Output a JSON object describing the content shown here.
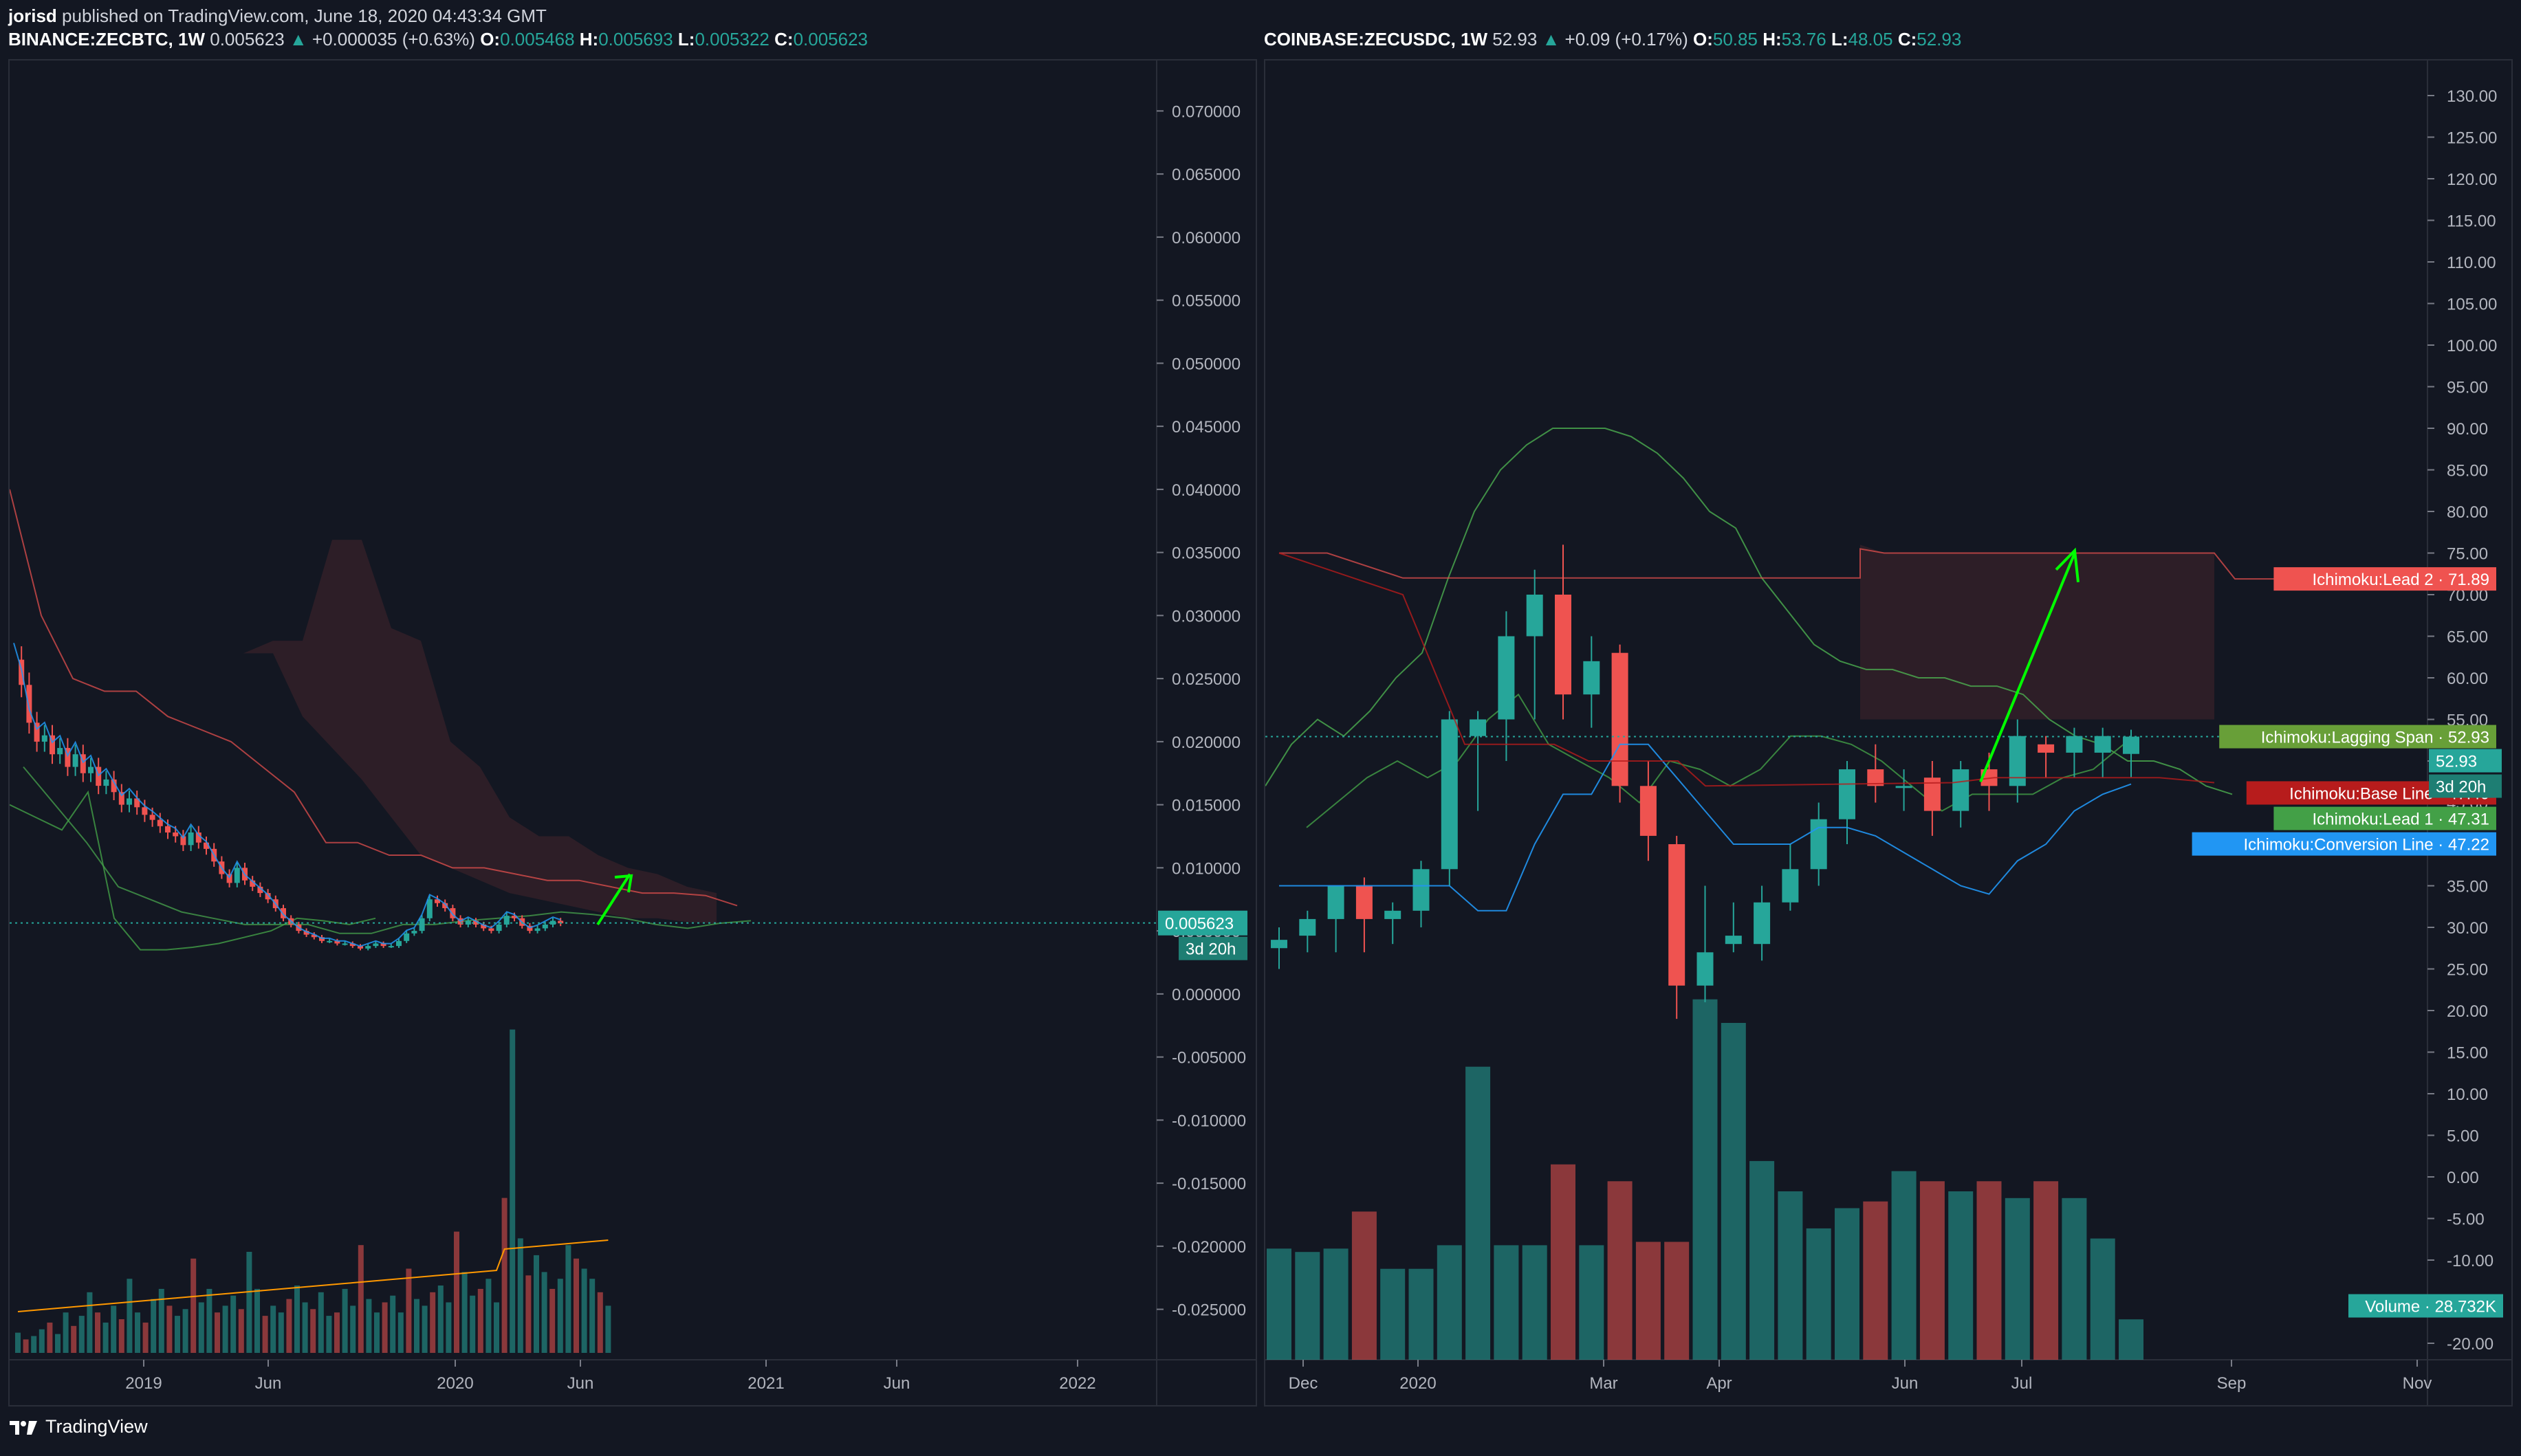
{
  "publisher": {
    "user": "jorisd",
    "text": "published on TradingView.com, June 18, 2020 04:43:34 GMT"
  },
  "left_header": {
    "symbol": "BINANCE:ZECBTC, 1W",
    "price": "0.005623",
    "change": "+0.000035 (+0.63%)",
    "o_label": "O:",
    "o": "0.005468",
    "h_label": "H:",
    "h": "0.005693",
    "l_label": "L:",
    "l": "0.005322",
    "c_label": "C:",
    "c": "0.005623"
  },
  "right_header": {
    "symbol": "COINBASE:ZECUSDC, 1W",
    "price": "52.93",
    "change": "+0.09 (+0.17%)",
    "o_label": "O:",
    "o": "50.85",
    "h_label": "H:",
    "h": "53.76",
    "l_label": "L:",
    "l": "48.05",
    "c_label": "C:",
    "c": "52.93"
  },
  "footer": {
    "brand": "TradingView"
  },
  "colors": {
    "background": "#131722",
    "up": "#26a69a",
    "down": "#ef5350",
    "grid": "#2a2e39",
    "lead1": "#4caf50",
    "lead2": "#ef5350",
    "base": "#b71c1c",
    "conversion": "#2196f3",
    "lagging": "#43a047",
    "volume_ma": "#ff9800",
    "arrow": "#00ff00"
  },
  "chart_data": [
    {
      "type": "candlestick",
      "symbol": "BINANCE:ZECBTC",
      "interval": "1W",
      "y_axis_ticks": [
        "0.070000",
        "0.065000",
        "0.060000",
        "0.055000",
        "0.050000",
        "0.045000",
        "0.040000",
        "0.035000",
        "0.030000",
        "0.025000",
        "0.020000",
        "0.015000",
        "0.010000",
        "0.005000",
        "0.000000",
        "-0.005000",
        "-0.010000",
        "-0.015000",
        "-0.020000",
        "-0.025000"
      ],
      "x_axis_ticks": [
        "2019",
        "Jun",
        "2020",
        "Jun",
        "2021",
        "Jun",
        "2022"
      ],
      "last_price_label": "0.005623",
      "countdown_label": "3d 20h",
      "ylim": [
        -0.029,
        0.074
      ],
      "close_series": [
        0.0265,
        0.0245,
        0.0215,
        0.02,
        0.0205,
        0.019,
        0.0195,
        0.018,
        0.019,
        0.0175,
        0.018,
        0.0165,
        0.017,
        0.016,
        0.015,
        0.0155,
        0.0148,
        0.0142,
        0.0138,
        0.0133,
        0.0128,
        0.0125,
        0.0118,
        0.0128,
        0.012,
        0.0115,
        0.0105,
        0.0095,
        0.0088,
        0.01,
        0.009,
        0.0085,
        0.008,
        0.0075,
        0.0068,
        0.006,
        0.0055,
        0.005,
        0.0047,
        0.0045,
        0.0042,
        0.0042,
        0.004,
        0.004,
        0.0038,
        0.0036,
        0.0038,
        0.004,
        0.0038,
        0.0038,
        0.0042,
        0.0048,
        0.005,
        0.006,
        0.0075,
        0.0072,
        0.0068,
        0.006,
        0.0055,
        0.0058,
        0.0055,
        0.0052,
        0.005,
        0.0055,
        0.0062,
        0.006,
        0.0054,
        0.005,
        0.0052,
        0.0055,
        0.0058,
        0.0056
      ],
      "ichimoku": {
        "lead1": [
          0.018,
          0.015,
          0.012,
          0.0085,
          0.0075,
          0.0065,
          0.006,
          0.0055,
          0.0055,
          0.0055,
          0.0048,
          0.0048,
          0.0055,
          0.0055,
          0.0058,
          0.006,
          0.0062,
          0.0065,
          0.0063,
          0.006,
          0.0055,
          0.0052,
          0.0056,
          0.0058
        ],
        "lead2": [
          0.04,
          0.03,
          0.025,
          0.024,
          0.024,
          0.022,
          0.021,
          0.02,
          0.018,
          0.016,
          0.012,
          0.012,
          0.011,
          0.011,
          0.01,
          0.01,
          0.0095,
          0.009,
          0.009,
          0.0085,
          0.008,
          0.008,
          0.0078,
          0.007
        ],
        "lagging": [
          0.015,
          0.014,
          0.013,
          0.016,
          0.006,
          0.0035,
          0.0035,
          0.0037,
          0.004,
          0.0045,
          0.005,
          0.006,
          0.0058,
          0.0055,
          0.006
        ],
        "cloud_top": [
          0.0,
          0.028,
          0.028,
          0.036,
          0.036,
          0.029,
          0.028,
          0.02,
          0.018,
          0.014,
          0.0125,
          0.0125,
          0.011,
          0.01,
          0.0095,
          0.0085,
          0.008
        ],
        "cloud_bottom": [
          0.0,
          0.027,
          0.022,
          0.0195,
          0.017,
          0.014,
          0.011,
          0.01,
          0.009,
          0.008,
          0.0075,
          0.007,
          0.0065,
          0.006,
          0.006,
          0.0057,
          0.0056
        ]
      }
    },
    {
      "type": "candlestick",
      "symbol": "COINBASE:ZECUSDC",
      "interval": "1W",
      "y_axis_ticks": [
        "130.00",
        "125.00",
        "120.00",
        "115.00",
        "110.00",
        "105.00",
        "100.00",
        "95.00",
        "90.00",
        "85.00",
        "80.00",
        "75.00",
        "70.00",
        "65.00",
        "60.00",
        "55.00",
        "50.00",
        "45.00",
        "40.00",
        "35.00",
        "30.00",
        "25.00",
        "20.00",
        "15.00",
        "10.00",
        "5.00",
        "0.00",
        "-5.00",
        "-10.00",
        "-15.00",
        "-20.00"
      ],
      "x_axis_ticks": [
        "Dec",
        "2020",
        "Mar",
        "Apr",
        "Jun",
        "Jul",
        "Sep",
        "Nov"
      ],
      "ylim": [
        -22,
        133
      ],
      "candles": [
        {
          "o": 27.5,
          "h": 30,
          "l": 25,
          "c": 28.5
        },
        {
          "o": 29,
          "h": 32,
          "l": 27,
          "c": 31
        },
        {
          "o": 31,
          "h": 35,
          "l": 27,
          "c": 35
        },
        {
          "o": 35,
          "h": 36,
          "l": 27,
          "c": 31
        },
        {
          "o": 31,
          "h": 33,
          "l": 28,
          "c": 32
        },
        {
          "o": 32,
          "h": 38,
          "l": 30,
          "c": 37
        },
        {
          "o": 37,
          "h": 56,
          "l": 35,
          "c": 55
        },
        {
          "o": 53,
          "h": 56,
          "l": 44,
          "c": 55
        },
        {
          "o": 55,
          "h": 68,
          "l": 50,
          "c": 65
        },
        {
          "o": 65,
          "h": 73,
          "l": 55,
          "c": 70
        },
        {
          "o": 70,
          "h": 76,
          "l": 55,
          "c": 58
        },
        {
          "o": 58,
          "h": 65,
          "l": 54,
          "c": 62
        },
        {
          "o": 63,
          "h": 64,
          "l": 45,
          "c": 47
        },
        {
          "o": 47,
          "h": 50,
          "l": 38,
          "c": 41
        },
        {
          "o": 40,
          "h": 41,
          "l": 19,
          "c": 23
        },
        {
          "o": 23,
          "h": 35,
          "l": 21,
          "c": 27
        },
        {
          "o": 28,
          "h": 33,
          "l": 27,
          "c": 29
        },
        {
          "o": 28,
          "h": 35,
          "l": 26,
          "c": 33
        },
        {
          "o": 33,
          "h": 40,
          "l": 32,
          "c": 37
        },
        {
          "o": 37,
          "h": 45,
          "l": 35,
          "c": 43
        },
        {
          "o": 43,
          "h": 50,
          "l": 40,
          "c": 49
        },
        {
          "o": 49,
          "h": 52,
          "l": 45,
          "c": 47
        },
        {
          "o": 47,
          "h": 49,
          "l": 44,
          "c": 47
        },
        {
          "o": 48,
          "h": 50,
          "l": 41,
          "c": 44
        },
        {
          "o": 44,
          "h": 50,
          "l": 42,
          "c": 49
        },
        {
          "o": 49,
          "h": 51,
          "l": 44,
          "c": 47
        },
        {
          "o": 47,
          "h": 55,
          "l": 45,
          "c": 53
        },
        {
          "o": 52,
          "h": 53,
          "l": 48,
          "c": 51
        },
        {
          "o": 51,
          "h": 54,
          "l": 48,
          "c": 53
        },
        {
          "o": 51,
          "h": 54,
          "l": 48,
          "c": 53
        },
        {
          "o": 50.85,
          "h": 53.76,
          "l": 48.05,
          "c": 52.93
        }
      ],
      "volumes": [
        33,
        32,
        33,
        44,
        27,
        27,
        34,
        87,
        34,
        34,
        58,
        34,
        53,
        35,
        35,
        107,
        100,
        59,
        50,
        39,
        45,
        47,
        56,
        53,
        50,
        53,
        48,
        53,
        48,
        36,
        12
      ],
      "ichimoku": {
        "lead1_label": "Ichimoku:Lead 1",
        "lead1": "47.31",
        "lead2_label": "Ichimoku:Lead 2",
        "lead2": "71.89",
        "base_label": "Ichimoku:Base Line",
        "base": "47.40",
        "conversion_label": "Ichimoku:Conversion Line",
        "conversion": "47.22",
        "lagging_label": "Ichimoku:Lagging Span",
        "lagging": "52.93",
        "last_price": "52.93",
        "countdown": "3d 20h",
        "lead1_series": [
          47,
          52,
          55,
          53,
          56,
          60,
          63,
          72,
          80,
          85,
          88,
          90,
          90,
          90,
          89,
          87,
          84,
          80,
          78,
          72,
          68,
          64,
          62,
          61,
          61,
          60,
          60,
          59,
          59,
          58,
          55,
          53,
          52,
          50,
          50,
          49,
          47,
          46
        ],
        "lead2_series": [
          75,
          75,
          72,
          72,
          72,
          72,
          72,
          72,
          72,
          72,
          72,
          72,
          72,
          72,
          72,
          72,
          72,
          72,
          72,
          72,
          72,
          72,
          72,
          72,
          72,
          72,
          72,
          72,
          72,
          72,
          72,
          72,
          72,
          71.89,
          71.89,
          71.89,
          71.89,
          71.89
        ],
        "conversion_series": [
          35,
          35,
          35,
          35,
          35,
          35,
          35,
          32,
          32,
          40,
          46,
          46,
          52,
          52,
          48,
          44,
          40,
          40,
          40,
          42,
          42,
          41,
          39,
          37,
          35,
          34,
          38,
          40,
          44,
          46,
          47.22
        ],
        "base_series": [
          75,
          72,
          70,
          64,
          56,
          52,
          52,
          52,
          50,
          49,
          50,
          50,
          50,
          47,
          47,
          47,
          47,
          47,
          47,
          48,
          48,
          47.4
        ]
      },
      "volume_label": "Volume",
      "volume_value": "28.732K"
    }
  ]
}
